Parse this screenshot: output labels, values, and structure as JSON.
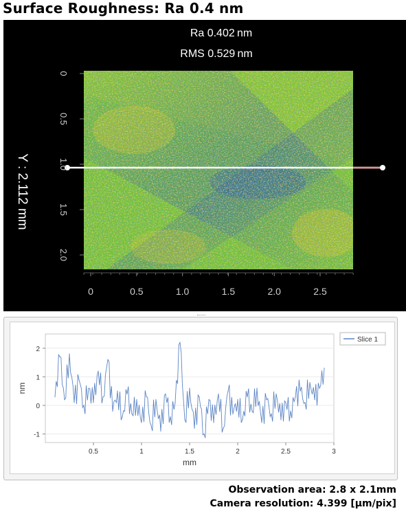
{
  "title": "Surface Roughness: Ra 0.4 nm",
  "map": {
    "ra_label": "Ra 0.402 nm",
    "rms_label": "RMS 0.529 nm",
    "y_axis_label": "Y : 2.112 mm",
    "y_ticks": [
      "0",
      "0.5",
      "1.0",
      "1.5",
      "2.0"
    ],
    "x_ticks": [
      "0",
      "0.5",
      "1.0",
      "1.5",
      "2.0",
      "2.5"
    ],
    "colors": {
      "background": "#000000",
      "base": "#6fc23a",
      "high": "#d9572a",
      "low": "#1f4fb8",
      "mid": "#c8d424",
      "slice_line": "#ffffff"
    },
    "slice_position_mm": 1.0
  },
  "chart_data": {
    "type": "line",
    "title": "",
    "xlabel": "mm",
    "ylabel": "nm",
    "xlim": [
      0,
      3
    ],
    "ylim": [
      -1.3,
      2.5
    ],
    "x_ticks": [
      "0.5",
      "1",
      "1.5",
      "2",
      "2.5",
      "3"
    ],
    "y_ticks": [
      "2",
      "1",
      "0",
      "-1"
    ],
    "legend_position": "top-right",
    "series": [
      {
        "name": "Slice 1",
        "color": "#5b84c4",
        "x": [
          0.1,
          0.15,
          0.2,
          0.25,
          0.3,
          0.35,
          0.4,
          0.45,
          0.5,
          0.55,
          0.6,
          0.65,
          0.7,
          0.75,
          0.8,
          0.85,
          0.9,
          0.95,
          1.0,
          1.05,
          1.1,
          1.15,
          1.2,
          1.25,
          1.3,
          1.35,
          1.4,
          1.45,
          1.5,
          1.55,
          1.6,
          1.65,
          1.7,
          1.75,
          1.8,
          1.85,
          1.9,
          1.95,
          2.0,
          2.05,
          2.1,
          2.15,
          2.2,
          2.25,
          2.3,
          2.35,
          2.4,
          2.45,
          2.5,
          2.55,
          2.6,
          2.65,
          2.7,
          2.75,
          2.8,
          2.85,
          2.9
        ],
        "values": [
          0.3,
          1.7,
          0.2,
          1.8,
          0.1,
          0.9,
          0.0,
          0.6,
          0.1,
          1.2,
          0.3,
          1.6,
          -0.2,
          0.5,
          -0.4,
          0.4,
          -0.3,
          0.2,
          -0.6,
          0.3,
          -0.7,
          0.2,
          -0.9,
          0.4,
          -0.4,
          0.1,
          2.2,
          -0.5,
          0.6,
          -0.8,
          0.3,
          -1.0,
          0.2,
          -0.6,
          0.4,
          -0.8,
          0.5,
          -0.3,
          0.2,
          -0.5,
          0.3,
          -0.2,
          0.6,
          -0.6,
          0.2,
          -0.3,
          0.4,
          -0.5,
          0.1,
          -0.2,
          0.3,
          0.5,
          0.1,
          0.8,
          0.2,
          0.6,
          1.3
        ]
      }
    ]
  },
  "footer": {
    "observation_area": "Observation area: 2.8 x 2.1mm",
    "camera_resolution": "Camera resolution: 4.399 [µm/pix]"
  }
}
